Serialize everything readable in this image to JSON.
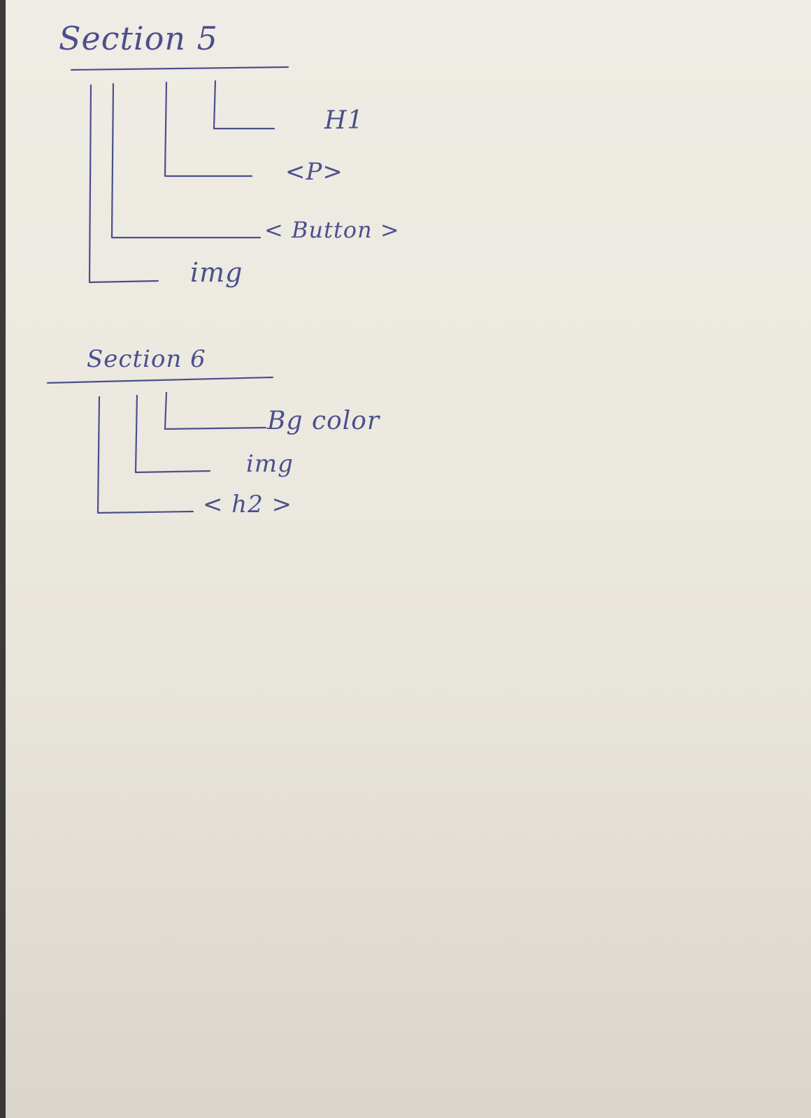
{
  "section5": {
    "title": "Section 5",
    "items": [
      "H1",
      "<P>",
      "< Button >",
      "img"
    ]
  },
  "section6": {
    "title": "Section 6",
    "items": [
      "Bg color",
      "img",
      "< h2 >"
    ]
  },
  "colors": {
    "ink": "#4b4f8c",
    "paper": "#ebe8df"
  }
}
